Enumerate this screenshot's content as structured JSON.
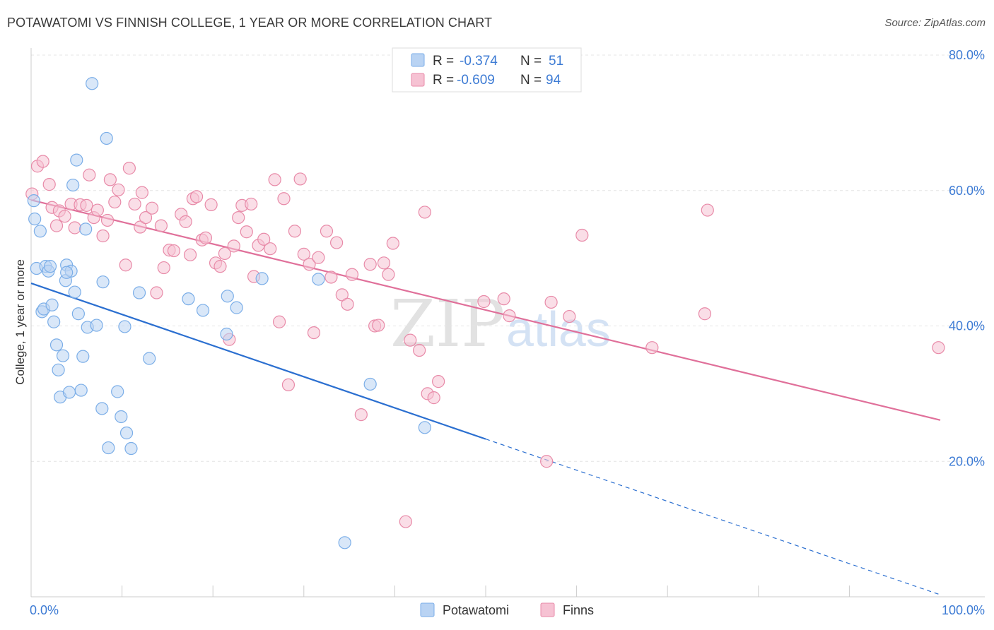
{
  "header": {
    "title": "POTAWATOMI VS FINNISH COLLEGE, 1 YEAR OR MORE CORRELATION CHART",
    "source": "Source: ZipAtlas.com"
  },
  "watermark": {
    "zip": "ZIP",
    "atlas": "atlas"
  },
  "legend": {
    "r_label": "R =",
    "n_label": "N =",
    "items": [
      {
        "name": "Potawatomi",
        "r": "-0.374",
        "n": "51",
        "color": "#7baee8",
        "fill": "#b9d3f3"
      },
      {
        "name": "Finns",
        "r": "-0.609",
        "n": "94",
        "color": "#e88aa8",
        "fill": "#f6c2d3"
      }
    ]
  },
  "chart_data": {
    "type": "scatter",
    "title": "POTAWATOMI VS FINNISH COLLEGE, 1 YEAR OR MORE CORRELATION CHART",
    "xlabel": "",
    "ylabel": "College, 1 year or more",
    "xlim": [
      0,
      100
    ],
    "ylim": [
      0,
      80
    ],
    "x_tick_labels": [
      {
        "value": 0,
        "label": "0.0%"
      },
      {
        "value": 100,
        "label": "100.0%"
      }
    ],
    "y_tick_labels": [
      {
        "value": 20,
        "label": "20.0%"
      },
      {
        "value": 40,
        "label": "40.0%"
      },
      {
        "value": 60,
        "label": "60.0%"
      },
      {
        "value": 80,
        "label": "80.0%"
      }
    ],
    "x_minor_ticks": [
      10,
      20,
      30,
      40,
      50,
      60,
      70,
      80,
      90
    ],
    "grid": true,
    "series": [
      {
        "name": "Potawatomi",
        "color": "#7baee8",
        "fill": "#b9d3f3",
        "line_color": "#2b6fd0",
        "trend": {
          "x0": 0,
          "y0": 46.3,
          "x1": 50,
          "y1": 23.3,
          "dash_to_x": 100,
          "dash_to_y": 0.3
        },
        "points": [
          [
            0.3,
            58.5
          ],
          [
            0.4,
            55.8
          ],
          [
            0.6,
            48.5
          ],
          [
            1.0,
            54.0
          ],
          [
            1.2,
            42.1
          ],
          [
            1.4,
            42.5
          ],
          [
            1.6,
            48.8
          ],
          [
            1.9,
            48.1
          ],
          [
            2.1,
            48.8
          ],
          [
            2.3,
            43.1
          ],
          [
            2.5,
            40.6
          ],
          [
            2.8,
            37.2
          ],
          [
            3.0,
            33.5
          ],
          [
            3.2,
            29.5
          ],
          [
            3.5,
            35.6
          ],
          [
            3.8,
            46.7
          ],
          [
            3.9,
            49.0
          ],
          [
            4.2,
            30.2
          ],
          [
            4.4,
            48.1
          ],
          [
            4.6,
            60.8
          ],
          [
            4.8,
            45.0
          ],
          [
            5.0,
            64.5
          ],
          [
            5.2,
            41.8
          ],
          [
            5.5,
            30.5
          ],
          [
            5.7,
            35.5
          ],
          [
            6.0,
            54.3
          ],
          [
            6.2,
            39.8
          ],
          [
            6.7,
            75.8
          ],
          [
            7.2,
            40.1
          ],
          [
            7.8,
            27.8
          ],
          [
            7.9,
            46.5
          ],
          [
            8.3,
            67.7
          ],
          [
            8.5,
            22.0
          ],
          [
            9.5,
            30.3
          ],
          [
            9.9,
            26.6
          ],
          [
            10.3,
            39.9
          ],
          [
            10.5,
            24.2
          ],
          [
            11.0,
            21.9
          ],
          [
            11.9,
            44.9
          ],
          [
            13.0,
            35.2
          ],
          [
            17.3,
            44.0
          ],
          [
            18.9,
            42.3
          ],
          [
            21.5,
            38.8
          ],
          [
            21.6,
            44.4
          ],
          [
            22.6,
            42.7
          ],
          [
            25.4,
            47.0
          ],
          [
            31.6,
            46.9
          ],
          [
            37.3,
            31.4
          ],
          [
            43.3,
            25.0
          ],
          [
            34.5,
            8.0
          ],
          [
            3.9,
            47.9
          ]
        ]
      },
      {
        "name": "Finns",
        "color": "#e88aa8",
        "fill": "#f6c2d3",
        "line_color": "#e0709a",
        "trend": {
          "x0": 0,
          "y0": 58.6,
          "x1": 100,
          "y1": 26.1
        },
        "points": [
          [
            0.1,
            59.5
          ],
          [
            0.7,
            63.6
          ],
          [
            1.3,
            64.3
          ],
          [
            2.0,
            60.9
          ],
          [
            2.3,
            57.5
          ],
          [
            2.8,
            54.8
          ],
          [
            3.1,
            57.0
          ],
          [
            3.7,
            56.2
          ],
          [
            4.4,
            58.0
          ],
          [
            4.8,
            54.5
          ],
          [
            5.4,
            57.9
          ],
          [
            6.1,
            57.8
          ],
          [
            6.4,
            62.3
          ],
          [
            6.9,
            56.0
          ],
          [
            7.3,
            57.1
          ],
          [
            7.9,
            53.3
          ],
          [
            8.4,
            55.6
          ],
          [
            8.7,
            61.6
          ],
          [
            9.2,
            58.3
          ],
          [
            9.6,
            60.1
          ],
          [
            10.4,
            49.0
          ],
          [
            10.8,
            63.3
          ],
          [
            11.4,
            58.0
          ],
          [
            12.0,
            54.6
          ],
          [
            12.2,
            59.7
          ],
          [
            12.6,
            56.0
          ],
          [
            13.3,
            57.4
          ],
          [
            13.8,
            44.9
          ],
          [
            14.3,
            54.8
          ],
          [
            14.6,
            48.6
          ],
          [
            15.2,
            51.2
          ],
          [
            15.7,
            51.1
          ],
          [
            16.5,
            56.5
          ],
          [
            17.0,
            55.4
          ],
          [
            17.5,
            50.5
          ],
          [
            17.8,
            58.8
          ],
          [
            18.2,
            59.1
          ],
          [
            18.8,
            52.7
          ],
          [
            19.2,
            53.0
          ],
          [
            19.8,
            57.9
          ],
          [
            20.3,
            49.3
          ],
          [
            20.8,
            48.8
          ],
          [
            21.3,
            50.7
          ],
          [
            21.8,
            38.0
          ],
          [
            22.3,
            51.8
          ],
          [
            22.8,
            56.0
          ],
          [
            23.2,
            57.8
          ],
          [
            23.7,
            53.9
          ],
          [
            24.2,
            58.0
          ],
          [
            24.5,
            47.3
          ],
          [
            25.0,
            51.9
          ],
          [
            25.6,
            52.8
          ],
          [
            26.3,
            51.4
          ],
          [
            26.8,
            61.6
          ],
          [
            27.3,
            40.6
          ],
          [
            27.8,
            58.8
          ],
          [
            28.3,
            31.3
          ],
          [
            29.0,
            54.0
          ],
          [
            29.6,
            61.7
          ],
          [
            30.0,
            50.6
          ],
          [
            30.6,
            49.1
          ],
          [
            31.1,
            39.0
          ],
          [
            31.6,
            50.1
          ],
          [
            32.5,
            54.0
          ],
          [
            33.0,
            47.2
          ],
          [
            33.6,
            52.3
          ],
          [
            34.2,
            44.6
          ],
          [
            34.8,
            43.2
          ],
          [
            35.3,
            47.6
          ],
          [
            36.3,
            26.9
          ],
          [
            37.3,
            49.1
          ],
          [
            37.8,
            40.0
          ],
          [
            38.2,
            40.1
          ],
          [
            38.8,
            49.3
          ],
          [
            39.3,
            47.6
          ],
          [
            39.8,
            52.2
          ],
          [
            41.2,
            11.1
          ],
          [
            41.7,
            37.9
          ],
          [
            42.7,
            36.4
          ],
          [
            43.3,
            56.8
          ],
          [
            43.6,
            30.0
          ],
          [
            44.3,
            29.4
          ],
          [
            44.8,
            31.8
          ],
          [
            49.8,
            43.6
          ],
          [
            52.0,
            44.0
          ],
          [
            52.6,
            41.5
          ],
          [
            56.7,
            20.0
          ],
          [
            57.2,
            43.5
          ],
          [
            59.2,
            41.4
          ],
          [
            60.6,
            53.4
          ],
          [
            68.3,
            36.8
          ],
          [
            74.1,
            41.8
          ],
          [
            74.4,
            57.1
          ],
          [
            99.8,
            36.8
          ]
        ]
      }
    ]
  }
}
